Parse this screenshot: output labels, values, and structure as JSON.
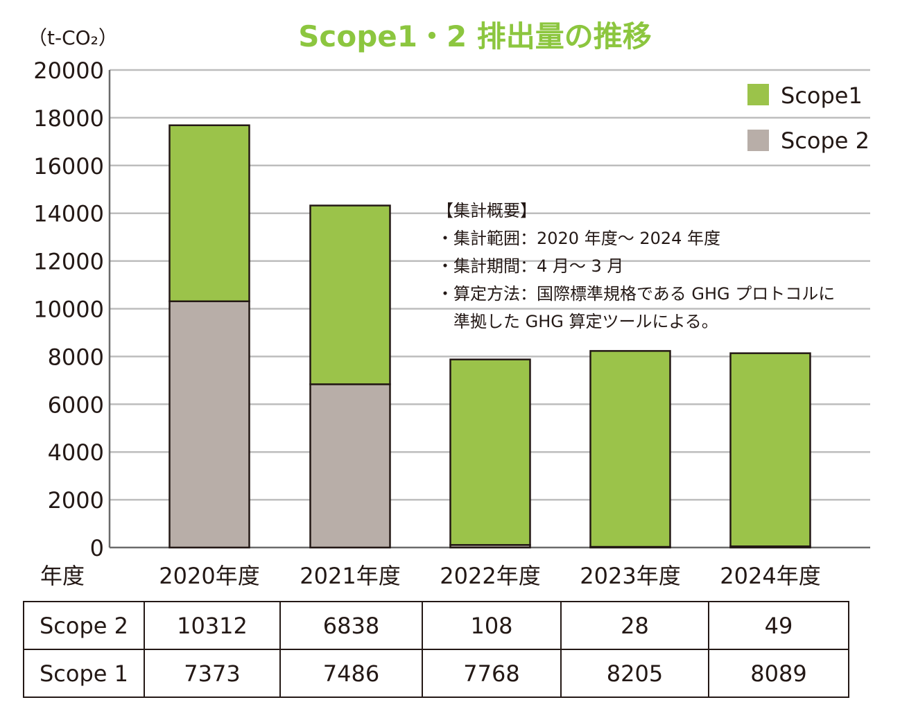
{
  "chart_data": {
    "type": "bar",
    "stacked": true,
    "title": "Scope1・2 排出量の推移",
    "ylabel": "（t-CO₂）",
    "xlabel": "年度",
    "ylim": [
      0,
      20000
    ],
    "yticks": [
      "20000",
      "18000",
      "16000",
      "14000",
      "12000",
      "10000",
      "8000",
      "6000",
      "4000",
      "2000",
      "0"
    ],
    "categories": [
      "2020年度",
      "2021年度",
      "2022年度",
      "2023年度",
      "2024年度"
    ],
    "series": [
      {
        "name": "Scope 2",
        "color": "#b8aea8",
        "values": [
          10312,
          6838,
          108,
          28,
          49
        ]
      },
      {
        "name": "Scope1",
        "color": "#9bc34a",
        "values": [
          7373,
          7486,
          7768,
          8205,
          8089
        ]
      }
    ],
    "legend": {
      "position": "top-right",
      "items": [
        "Scope1",
        "Scope 2"
      ]
    },
    "grid": true
  },
  "note": {
    "heading": "【集計概要】",
    "lines": [
      "・集計範囲：2020 年度～ 2024 年度",
      "・集計期間：4 月～ 3 月",
      "・算定方法：国際標準規格である GHG プロトコルに",
      "　準拠した GHG 算定ツールによる。"
    ]
  },
  "table": {
    "rows": [
      {
        "label": "Scope 2",
        "values": [
          "10312",
          "6838",
          "108",
          "28",
          "49"
        ]
      },
      {
        "label": "Scope 1",
        "values": [
          "7373",
          "7486",
          "7768",
          "8205",
          "8089"
        ]
      }
    ]
  }
}
